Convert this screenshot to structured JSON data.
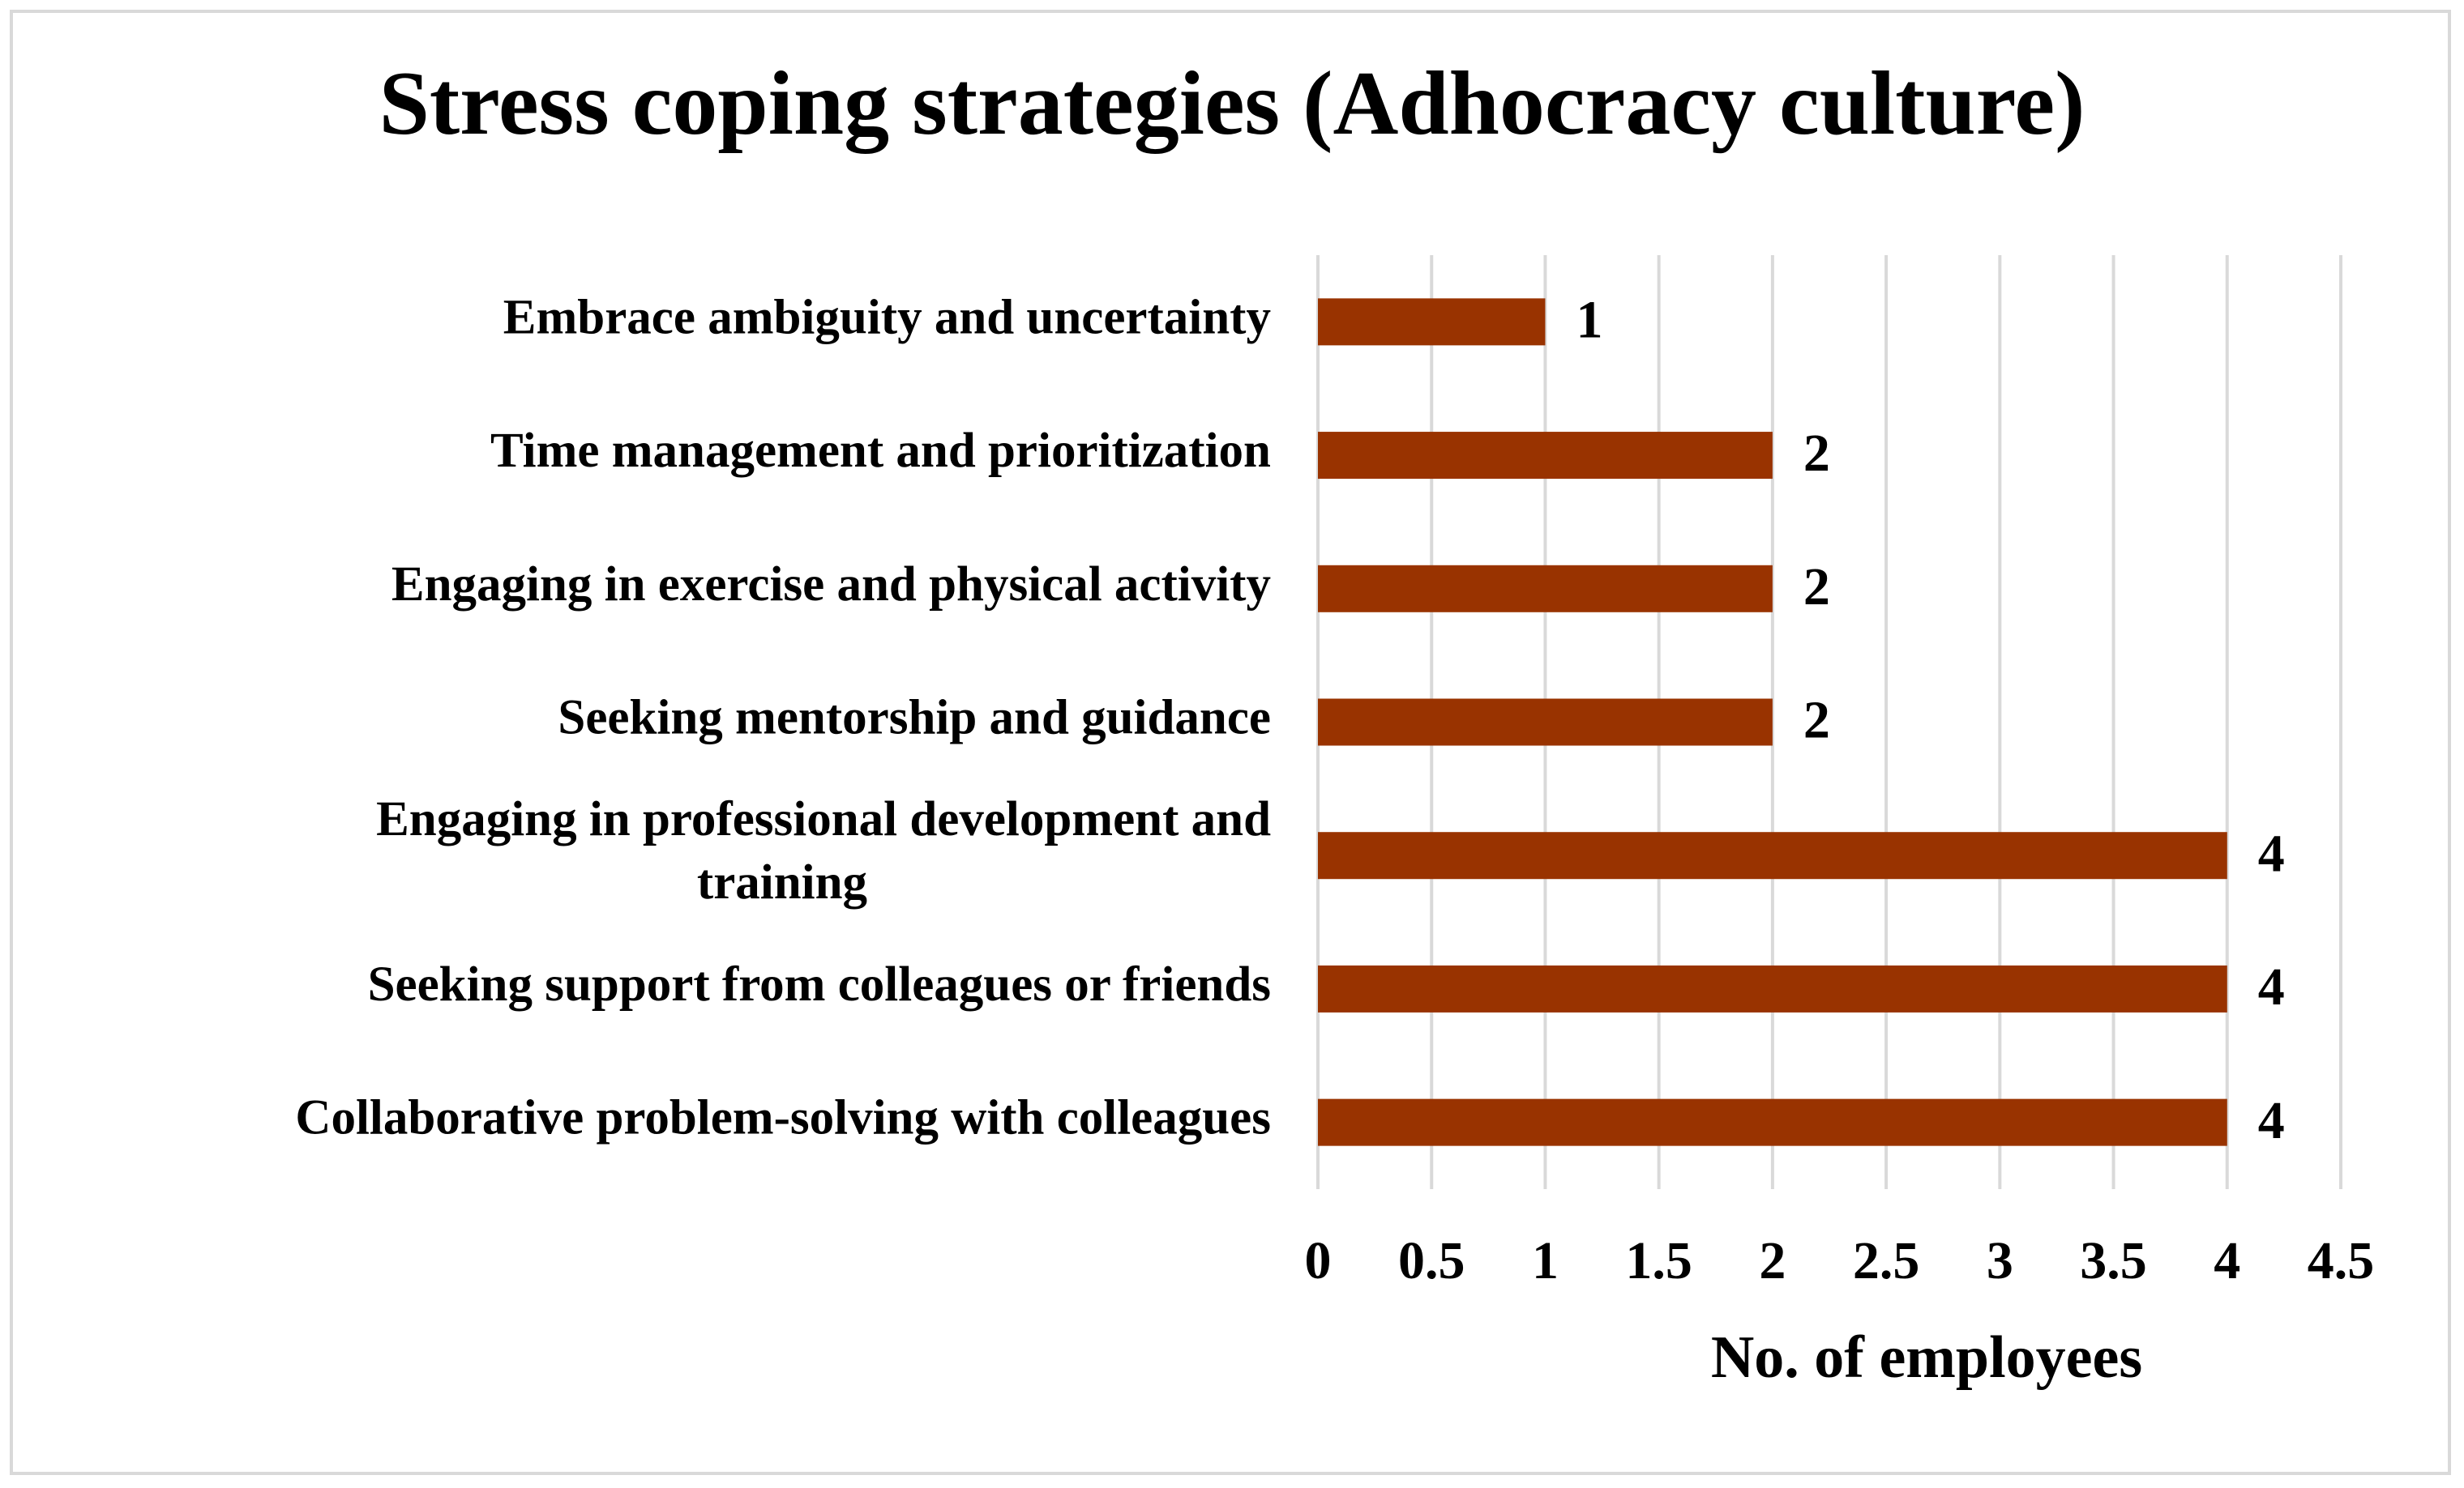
{
  "chart_data": {
    "type": "bar",
    "orientation": "horizontal",
    "title": "Stress coping strategies (Adhocracy culture)",
    "xlabel": "No. of employees",
    "ylabel": "",
    "categories": [
      "Embrace ambiguity and uncertainty",
      "Time management and prioritization",
      "Engaging in exercise and physical activity",
      "Seeking mentorship and guidance",
      "Engaging in professional development and training",
      "Seeking support from colleagues or friends",
      "Collaborative problem-solving with colleagues"
    ],
    "category_lines": [
      [
        "Embrace ambiguity and uncertainty"
      ],
      [
        "Time management and prioritization"
      ],
      [
        "Engaging in exercise and physical activity"
      ],
      [
        "Seeking mentorship and guidance"
      ],
      [
        "Engaging in professional development and",
        "training"
      ],
      [
        "Seeking support from colleagues or friends"
      ],
      [
        "Collaborative problem-solving with colleagues"
      ]
    ],
    "values": [
      1,
      2,
      2,
      2,
      4,
      4,
      4
    ],
    "data_labels": [
      "1",
      "2",
      "2",
      "2",
      "4",
      "4",
      "4"
    ],
    "xlim": [
      0,
      4.5
    ],
    "xticks": [
      0,
      0.5,
      1,
      1.5,
      2,
      2.5,
      3,
      3.5,
      4,
      4.5
    ],
    "xtick_labels": [
      "0",
      "0.5",
      "1",
      "1.5",
      "2",
      "2.5",
      "3",
      "3.5",
      "4",
      "4.5"
    ],
    "grid": "vertical",
    "legend": "none",
    "bar_color": "#993300",
    "grid_color": "#d9d9d9"
  }
}
